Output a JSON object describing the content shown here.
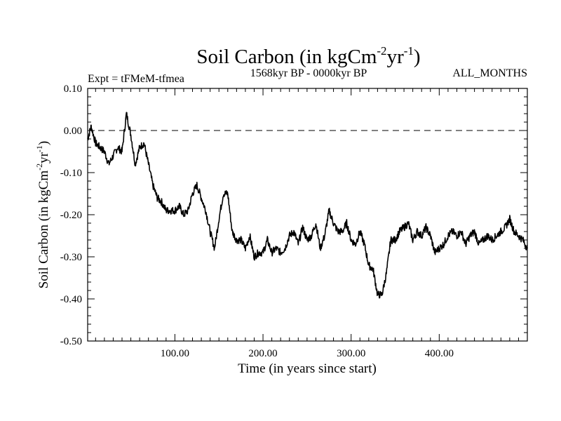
{
  "chart_data": {
    "type": "line",
    "title": {
      "main": "Soil Carbon (in kgCm",
      "sup1": "-2",
      "mid": "yr",
      "sup2": "-1",
      "end": ")"
    },
    "ylabel": {
      "main": "Soil Carbon (in kgCm",
      "sup1": "-2",
      "mid": "yr",
      "sup2": "-1",
      "end": ")"
    },
    "xlabel": "Time (in years since start)",
    "header_left": "Expt = tFMeM-tfmea",
    "header_center": "1568kyr BP - 0000kyr BP",
    "header_right": "ALL_MONTHS",
    "xlim": [
      1,
      500
    ],
    "ylim": [
      -0.5,
      0.1
    ],
    "x_ticks": [
      100,
      200,
      300,
      400
    ],
    "x_tick_labels": [
      "100.00",
      "200.00",
      "300.00",
      "400.00"
    ],
    "y_ticks": [
      0.1,
      0.0,
      -0.1,
      -0.2,
      -0.3,
      -0.4,
      -0.5
    ],
    "y_tick_labels": [
      "0.10",
      "0.00",
      "-0.10",
      "-0.20",
      "-0.30",
      "-0.40",
      "-0.50"
    ],
    "reference_line": {
      "y": 0.0,
      "style": "dashed"
    },
    "series": [
      {
        "name": "Soil Carbon",
        "x": [
          1,
          5,
          10,
          15,
          20,
          25,
          30,
          35,
          40,
          45,
          50,
          55,
          60,
          65,
          70,
          75,
          80,
          85,
          90,
          95,
          100,
          105,
          110,
          115,
          120,
          125,
          130,
          135,
          140,
          145,
          150,
          155,
          160,
          165,
          170,
          175,
          180,
          185,
          190,
          195,
          200,
          205,
          210,
          215,
          220,
          225,
          230,
          235,
          240,
          245,
          250,
          255,
          260,
          265,
          270,
          275,
          280,
          285,
          290,
          295,
          300,
          305,
          310,
          315,
          320,
          325,
          330,
          335,
          340,
          345,
          350,
          355,
          360,
          365,
          370,
          375,
          380,
          385,
          390,
          395,
          400,
          405,
          410,
          415,
          420,
          425,
          430,
          435,
          440,
          445,
          450,
          455,
          460,
          465,
          470,
          475,
          480,
          485,
          490,
          495,
          500
        ],
        "values": [
          -0.02,
          0.01,
          -0.03,
          -0.04,
          -0.05,
          -0.08,
          -0.06,
          -0.04,
          -0.05,
          0.04,
          -0.01,
          -0.08,
          -0.04,
          -0.03,
          -0.08,
          -0.13,
          -0.16,
          -0.17,
          -0.19,
          -0.19,
          -0.19,
          -0.18,
          -0.2,
          -0.19,
          -0.15,
          -0.13,
          -0.16,
          -0.19,
          -0.24,
          -0.28,
          -0.21,
          -0.15,
          -0.15,
          -0.24,
          -0.26,
          -0.26,
          -0.28,
          -0.25,
          -0.3,
          -0.29,
          -0.29,
          -0.26,
          -0.29,
          -0.28,
          -0.29,
          -0.28,
          -0.25,
          -0.24,
          -0.27,
          -0.23,
          -0.26,
          -0.25,
          -0.22,
          -0.28,
          -0.25,
          -0.19,
          -0.22,
          -0.24,
          -0.24,
          -0.22,
          -0.26,
          -0.27,
          -0.24,
          -0.27,
          -0.32,
          -0.33,
          -0.39,
          -0.39,
          -0.34,
          -0.26,
          -0.26,
          -0.24,
          -0.23,
          -0.22,
          -0.26,
          -0.24,
          -0.25,
          -0.23,
          -0.25,
          -0.29,
          -0.28,
          -0.27,
          -0.25,
          -0.24,
          -0.25,
          -0.24,
          -0.27,
          -0.25,
          -0.24,
          -0.27,
          -0.26,
          -0.25,
          -0.26,
          -0.25,
          -0.24,
          -0.23,
          -0.21,
          -0.24,
          -0.25,
          -0.26,
          -0.28
        ]
      }
    ]
  }
}
